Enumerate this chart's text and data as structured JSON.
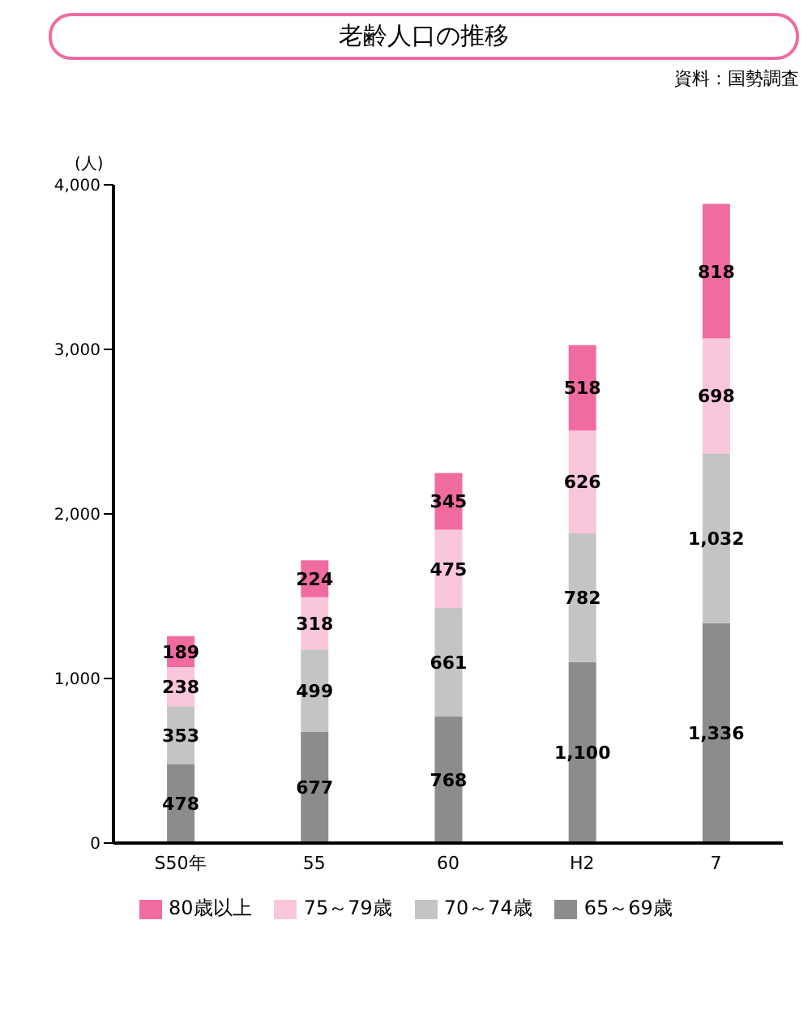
{
  "chart_data": {
    "type": "bar",
    "title": "老齢人口の推移",
    "ylabel": "(人)",
    "annotations": [
      "資料：国勢調査"
    ],
    "categories": [
      "S50年",
      "55",
      "60",
      "H2",
      "7"
    ],
    "stacked": true,
    "legend": "bottom",
    "ylim": [
      0,
      4000
    ],
    "yticks": [
      {
        "value": 0,
        "label": "0"
      },
      {
        "value": 1000,
        "label": "1,000"
      },
      {
        "value": 2000,
        "label": "2,000"
      },
      {
        "value": 3000,
        "label": "3,000"
      },
      {
        "value": 4000,
        "label": "4,000"
      }
    ],
    "series": [
      {
        "name": "65～69歳",
        "color": "#8c8c8c",
        "values": [
          478,
          677,
          768,
          1100,
          1336
        ],
        "value_labels": [
          "478",
          "677",
          "768",
          "1,100",
          "1,336"
        ]
      },
      {
        "name": "70～74歳",
        "color": "#c4c4c4",
        "values": [
          353,
          499,
          661,
          782,
          1032
        ],
        "value_labels": [
          "353",
          "499",
          "661",
          "782",
          "1,032"
        ]
      },
      {
        "name": "75～79歳",
        "color": "#f9c6dc",
        "values": [
          238,
          318,
          475,
          626,
          698
        ],
        "value_labels": [
          "238",
          "318",
          "475",
          "626",
          "698"
        ]
      },
      {
        "name": "80歳以上",
        "color": "#f06ca0",
        "values": [
          189,
          224,
          345,
          518,
          818
        ],
        "value_labels": [
          "189",
          "224",
          "345",
          "518",
          "818"
        ]
      }
    ]
  }
}
